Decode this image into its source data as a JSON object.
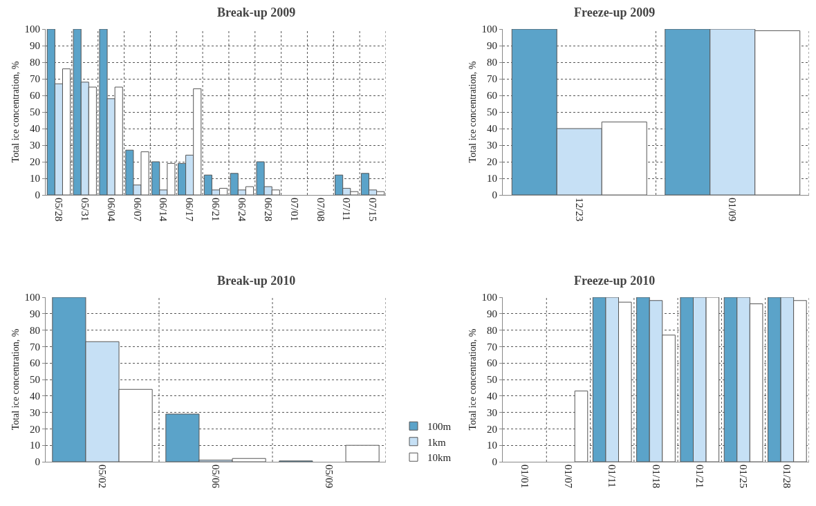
{
  "chart_data": [
    {
      "type": "bar",
      "title": "Break-up 2009",
      "ylabel": "Total ice concentration, %",
      "categories": [
        "05/28",
        "05/31",
        "06/04",
        "06/07",
        "06/14",
        "06/17",
        "06/21",
        "06/24",
        "06/28",
        "07/01",
        "07/08",
        "07/11",
        "07/15"
      ],
      "ylim": [
        0,
        100
      ],
      "yticks": [
        0,
        10,
        20,
        30,
        40,
        50,
        60,
        70,
        80,
        90,
        100
      ],
      "grid": true,
      "series": [
        {
          "color": "#5ba3c9",
          "values": [
            100,
            100,
            100,
            27,
            20,
            19,
            12,
            13,
            20,
            null,
            null,
            12,
            13
          ]
        },
        {
          "color": "#c6e0f5",
          "values": [
            67,
            68,
            58,
            6,
            3,
            24,
            3,
            3,
            5,
            null,
            null,
            4,
            3
          ]
        },
        {
          "color": "#ffffff",
          "values": [
            76,
            65,
            65,
            26,
            19,
            64,
            4,
            5,
            3,
            null,
            null,
            2,
            2
          ]
        }
      ]
    },
    {
      "type": "bar",
      "title": "Freeze-up 2009",
      "ylabel": "Total ice concentration, %",
      "categories": [
        "12/23",
        "01/09"
      ],
      "ylim": [
        0,
        100
      ],
      "yticks": [
        0,
        10,
        20,
        30,
        40,
        50,
        60,
        70,
        80,
        90,
        100
      ],
      "grid": true,
      "series": [
        {
          "color": "#5ba3c9",
          "values": [
            100,
            100
          ]
        },
        {
          "color": "#c6e0f5",
          "values": [
            40,
            100
          ]
        },
        {
          "color": "#ffffff",
          "values": [
            44,
            99
          ]
        }
      ]
    },
    {
      "type": "bar",
      "title": "Break-up 2010",
      "ylabel": "Total ice concentration, %",
      "categories": [
        "05/02",
        "05/06",
        "05/09"
      ],
      "ylim": [
        0,
        100
      ],
      "yticks": [
        0,
        10,
        20,
        30,
        40,
        50,
        60,
        70,
        80,
        90,
        100
      ],
      "grid": true,
      "legend": "right",
      "series": [
        {
          "name": "100m",
          "color": "#5ba3c9",
          "values": [
            100,
            29,
            0.5
          ]
        },
        {
          "name": "1km",
          "color": "#c6e0f5",
          "values": [
            73,
            1,
            null
          ]
        },
        {
          "name": "10km",
          "color": "#ffffff",
          "values": [
            44,
            2,
            10
          ]
        }
      ]
    },
    {
      "type": "bar",
      "title": "Freeze-up 2010",
      "ylabel": "Total ice concentration, %",
      "categories": [
        "01/01",
        "01/07",
        "01/11",
        "01/18",
        "01/21",
        "01/25",
        "01/28"
      ],
      "ylim": [
        0,
        100
      ],
      "yticks": [
        0,
        10,
        20,
        30,
        40,
        50,
        60,
        70,
        80,
        90,
        100
      ],
      "grid": true,
      "series": [
        {
          "color": "#5ba3c9",
          "values": [
            null,
            null,
            100,
            100,
            100,
            100,
            100
          ]
        },
        {
          "color": "#c6e0f5",
          "values": [
            null,
            null,
            100,
            98,
            100,
            100,
            100
          ]
        },
        {
          "color": "#ffffff",
          "values": [
            null,
            43,
            97,
            77,
            100,
            96,
            98
          ]
        }
      ]
    }
  ]
}
